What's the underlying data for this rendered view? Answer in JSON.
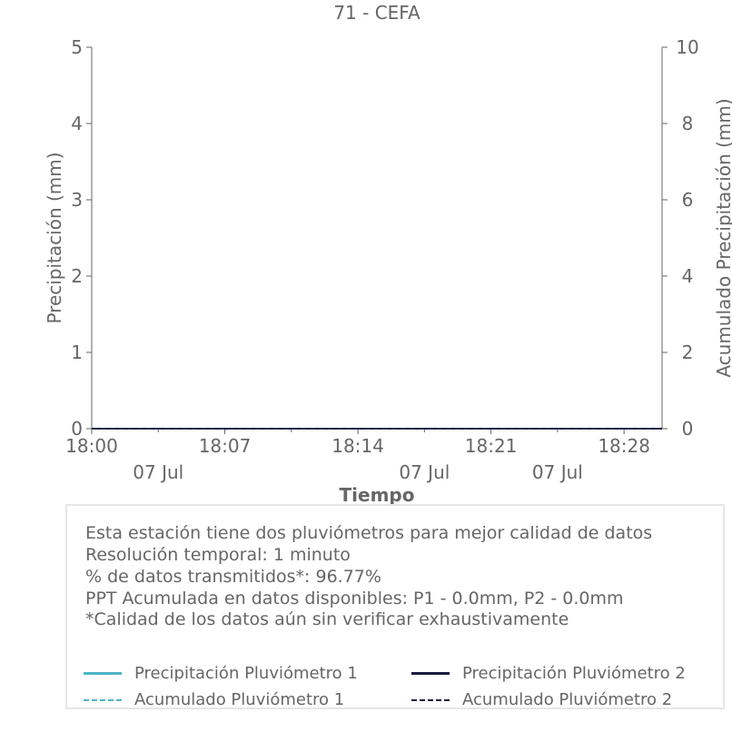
{
  "chart_data": {
    "type": "line",
    "title": "71 - CEFA",
    "xlabel": "Tiempo",
    "ylabel": "Precipitación (mm)",
    "y2label": "Acumulado Precipitación (mm)",
    "ylim": [
      0,
      5
    ],
    "y2lim": [
      0,
      10
    ],
    "yticks": [
      "0",
      "1",
      "2",
      "3",
      "4",
      "5"
    ],
    "y2ticks": [
      "0",
      "2",
      "4",
      "6",
      "8",
      "10"
    ],
    "xlim": [
      "18:00",
      "18:30"
    ],
    "xticks": [
      {
        "time": "18:00",
        "date": "07 Jul"
      },
      {
        "time": "18:07",
        "date": ""
      },
      {
        "time": "18:14",
        "date": "07 Jul"
      },
      {
        "time": "18:21",
        "date": ""
      },
      {
        "time": "18:28",
        "date": "07 Jul"
      }
    ],
    "x": [
      "18:00",
      "18:30"
    ],
    "series": [
      {
        "name": "Precipitación Pluviómetro 1",
        "axis": "left",
        "style": "solid",
        "color": "#4fb3c8",
        "values": [
          0,
          0
        ]
      },
      {
        "name": "Precipitación Pluviómetro 2",
        "axis": "left",
        "style": "solid",
        "color": "#1a1a3e",
        "values": [
          0,
          0
        ]
      },
      {
        "name": "Acumulado Pluviómetro 1",
        "axis": "right",
        "style": "dashed",
        "color": "#4fb3c8",
        "values": [
          0,
          0
        ]
      },
      {
        "name": "Acumulado Pluviómetro 2",
        "axis": "right",
        "style": "dashed",
        "color": "#1a1a3e",
        "values": [
          0,
          0
        ]
      }
    ],
    "grid": false
  },
  "info": {
    "lines": [
      "Esta estación tiene dos pluviómetros para mejor calidad de datos",
      "Resolución temporal: 1 minuto",
      "% de datos transmitidos*: 96.77%",
      "PPT Acumulada en datos disponibles: P1 - 0.0mm, P2 - 0.0mm",
      "*Calidad de los datos aún sin verificar exhaustivamente"
    ]
  }
}
